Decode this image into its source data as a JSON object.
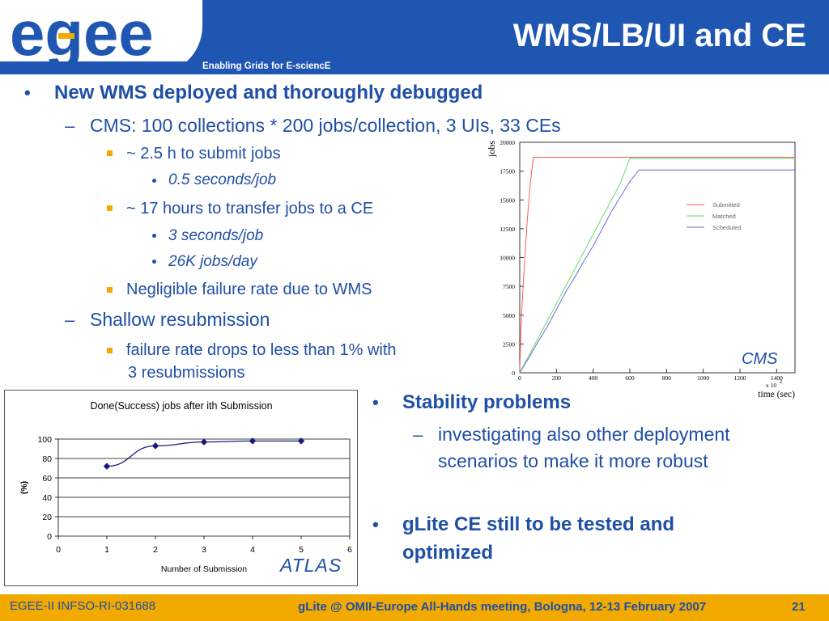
{
  "header": {
    "logo_text": "egee",
    "tagline": "Enabling Grids for E-sciencE",
    "title": "WMS/LB/UI and CE"
  },
  "bullets": {
    "b1": "New WMS deployed and thoroughly debugged",
    "b1_sub1": "CMS: 100 collections * 200 jobs/collection, 3 UIs, 33 CEs",
    "b1_sub1_a": "~ 2.5 h to submit jobs",
    "b1_sub1_a_i": "0.5 seconds/job",
    "b1_sub1_b": "~ 17 hours to transfer jobs to a CE",
    "b1_sub1_b_i": "3 seconds/job",
    "b1_sub1_b_ii": "26K jobs/day",
    "b1_sub1_c": "Negligible failure rate due to WMS",
    "b1_sub2": "Shallow resubmission",
    "b1_sub2_a_line1": "failure rate drops to less than 1% with",
    "b1_sub2_a_line2": "3 resubmissions",
    "b2": "Stability problems",
    "b2_sub1_line1": "investigating also other deployment",
    "b2_sub1_line2": "scenarios to make it more robust",
    "b3_line1": "gLite CE still to be tested and",
    "b3_line2": "optimized"
  },
  "markers": {
    "l1": "•",
    "l2": "–"
  },
  "chart_data": [
    {
      "type": "line",
      "annotation": "CMS",
      "xlabel": "time (sec)",
      "x_multiplier_label": "x 10",
      "x_multiplier_exp": "2",
      "ylabel": "jobs",
      "xlim": [
        0,
        1500
      ],
      "ylim": [
        0,
        20000
      ],
      "x_ticks": [
        0,
        200,
        400,
        600,
        800,
        1000,
        1200,
        1400
      ],
      "y_ticks": [
        0,
        2500,
        5000,
        7500,
        10000,
        12500,
        15000,
        17500,
        20000
      ],
      "legend_position": "right",
      "series": [
        {
          "name": "Submitted",
          "color": "#ff5a5a",
          "x": [
            0,
            5,
            10,
            20,
            30,
            40,
            50,
            60,
            70,
            75,
            80,
            1500
          ],
          "y": [
            0,
            3000,
            5000,
            8000,
            10500,
            13000,
            15000,
            16800,
            18200,
            18700,
            18700,
            18700
          ]
        },
        {
          "name": "Matched",
          "color": "#66dd66",
          "x": [
            0,
            50,
            100,
            150,
            200,
            250,
            300,
            350,
            400,
            450,
            500,
            550,
            600,
            1500
          ],
          "y": [
            0,
            1500,
            3000,
            4500,
            6000,
            7500,
            9000,
            10500,
            12000,
            13500,
            15000,
            16500,
            18600,
            18600
          ]
        },
        {
          "name": "Scheduled",
          "color": "#6b6bdd",
          "x": [
            0,
            50,
            100,
            150,
            200,
            250,
            300,
            350,
            400,
            450,
            500,
            550,
            600,
            650,
            680,
            1500
          ],
          "y": [
            0,
            1300,
            2700,
            4000,
            5500,
            7000,
            8300,
            9700,
            11000,
            12500,
            14000,
            15300,
            16600,
            17600,
            17600,
            17600
          ]
        }
      ]
    },
    {
      "type": "line",
      "title": "Done(Success) jobs after ith Submission",
      "annotation": "ATLAS",
      "xlabel": "Number of Submission",
      "ylabel": "(%)",
      "xlim": [
        0,
        6
      ],
      "ylim": [
        0,
        100
      ],
      "x_ticks": [
        0,
        1,
        2,
        3,
        4,
        5,
        6
      ],
      "y_ticks": [
        0,
        20,
        40,
        60,
        80,
        100
      ],
      "grid": true,
      "series": [
        {
          "color": "#1a1a80",
          "x": [
            1,
            2,
            3,
            4,
            5
          ],
          "y": [
            72,
            93,
            97,
            98,
            98
          ]
        }
      ]
    }
  ],
  "footer": {
    "left": "EGEE-II INFSO-RI-031688",
    "center": "gLite @ OMII-Europe All-Hands meeting, Bologna, 12-13 February 2007",
    "page": "21"
  }
}
